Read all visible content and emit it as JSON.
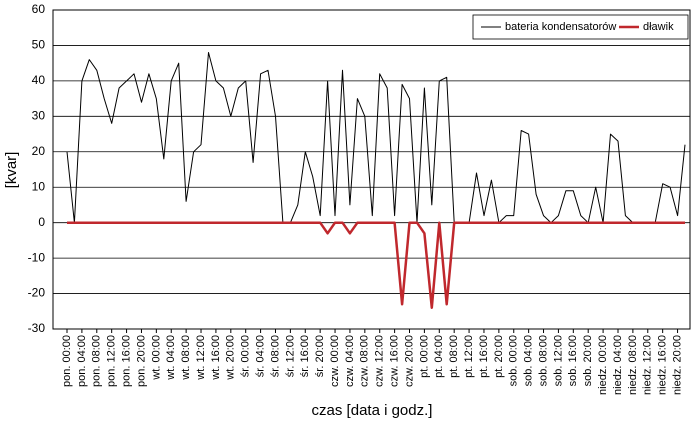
{
  "chart_data": {
    "type": "line",
    "ylabel": "[kvar]",
    "xlabel": "czas [data i godz.]",
    "categories": [
      "pon. 00:00",
      null,
      "pon. 04:00",
      null,
      "pon. 08:00",
      null,
      "pon. 12:00",
      null,
      "pon. 16:00",
      null,
      "pon. 20:00",
      null,
      "wt. 00:00",
      null,
      "wt. 04:00",
      null,
      "wt. 08:00",
      null,
      "wt. 12:00",
      null,
      "wt. 16:00",
      null,
      "wt. 20:00",
      null,
      "śr. 00:00",
      null,
      "śr. 04:00",
      null,
      "śr. 08:00",
      null,
      "śr. 12:00",
      null,
      "śr. 16:00",
      null,
      "śr. 20:00",
      null,
      "czw. 00:00",
      null,
      "czw. 04:00",
      null,
      "czw. 08:00",
      null,
      "czw. 12:00",
      null,
      "czw. 16:00",
      null,
      "czw. 20:00",
      null,
      "pt. 00:00",
      null,
      "pt. 04:00",
      null,
      "pt. 08:00",
      null,
      "pt. 12:00",
      null,
      "pt. 16:00",
      null,
      "pt. 20:00",
      null,
      "sob. 00:00",
      null,
      "sob. 04:00",
      null,
      "sob. 08:00",
      null,
      "sob. 12:00",
      null,
      "sob. 16:00",
      null,
      "sob. 20:00",
      null,
      "niedz. 00:00",
      null,
      "niedz. 04:00",
      null,
      "niedz. 08:00",
      null,
      "niedz. 12:00",
      null,
      "niedz. 16:00",
      null,
      "niedz. 20:00",
      null
    ],
    "series": [
      {
        "name": "bateria kondensatorów",
        "color": "#000000",
        "width": 1,
        "values": [
          20,
          0,
          40,
          46,
          43,
          35,
          28,
          38,
          40,
          42,
          34,
          42,
          35,
          18,
          40,
          45,
          6,
          20,
          22,
          48,
          40,
          38,
          30,
          38,
          40,
          17,
          42,
          43,
          30,
          0,
          0,
          5,
          20,
          13,
          2,
          40,
          2,
          43,
          5,
          35,
          30,
          2,
          42,
          38,
          2,
          39,
          35,
          0,
          38,
          5,
          40,
          41,
          0,
          0,
          0,
          14,
          2,
          12,
          0,
          2,
          2,
          26,
          25,
          8,
          2,
          0,
          2,
          9,
          9,
          2,
          0,
          10,
          0,
          25,
          23,
          2,
          0,
          0,
          0,
          0,
          11,
          10,
          2,
          22
        ]
      },
      {
        "name": "dławik",
        "color": "#c0282d",
        "width": 2.5,
        "values": [
          0,
          0,
          0,
          0,
          0,
          0,
          0,
          0,
          0,
          0,
          0,
          0,
          0,
          0,
          0,
          0,
          0,
          0,
          0,
          0,
          0,
          0,
          0,
          0,
          0,
          0,
          0,
          0,
          0,
          0,
          0,
          0,
          0,
          0,
          0,
          -3,
          0,
          0,
          -3,
          0,
          0,
          0,
          0,
          0,
          0,
          -23,
          0,
          0,
          -3,
          -24,
          0,
          -23,
          0,
          0,
          0,
          0,
          0,
          0,
          0,
          0,
          0,
          0,
          0,
          0,
          0,
          0,
          0,
          0,
          0,
          0,
          0,
          0,
          0,
          0,
          0,
          0,
          0,
          0,
          0,
          0,
          0,
          0,
          0,
          0
        ]
      }
    ],
    "ylim": [
      -30,
      60
    ],
    "yticks": [
      -30,
      -20,
      -10,
      0,
      10,
      20,
      30,
      40,
      50,
      60
    ],
    "grid": true,
    "legend": "top-right"
  }
}
